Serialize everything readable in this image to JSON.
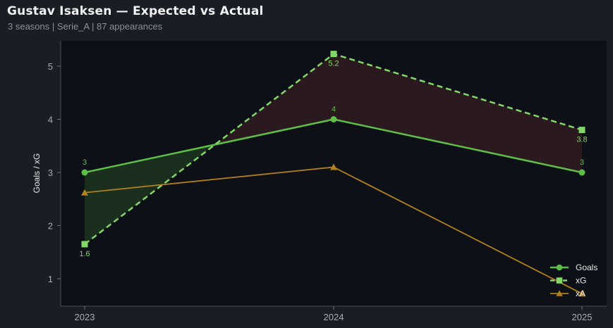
{
  "header": {
    "title": "Gustav Isaksen — Expected vs Actual",
    "subtitle": "3 seasons | Serie_A | 87 appearances"
  },
  "colors": {
    "background": "#1a1d24",
    "plot_background": "#0d1016",
    "goals": "#5dbf48",
    "xg": "#82d66a",
    "xa": "#b07f1e",
    "overperform_fill": "#1d3320",
    "underperform_fill": "#2e1c20"
  },
  "chart_data": {
    "type": "line",
    "title": "Gustav Isaksen — Expected vs Actual",
    "xlabel": "",
    "ylabel": "Goals / xG",
    "categories": [
      "2023",
      "2024",
      "2025"
    ],
    "ylim": [
      0.5,
      5.45
    ],
    "yticks": [
      "1",
      "2",
      "3",
      "4",
      "5"
    ],
    "grid": false,
    "legend_position": "bottom-right",
    "series": [
      {
        "name": "Goals",
        "values": [
          3,
          4,
          3
        ],
        "marker": "circle",
        "dash": "solid",
        "labels": [
          "3",
          "4",
          "3"
        ]
      },
      {
        "name": "xG",
        "values": [
          1.65,
          5.23,
          3.8
        ],
        "marker": "square",
        "dash": "dashed",
        "labels": [
          "1.6",
          "5.2",
          "3.8"
        ]
      },
      {
        "name": "xA",
        "values": [
          2.62,
          3.1,
          0.72
        ],
        "marker": "triangle",
        "dash": "solid",
        "labels": []
      }
    ],
    "shading": "fill between Goals and xG (green where Goals exceed xG, red where xG exceeds Goals)"
  }
}
